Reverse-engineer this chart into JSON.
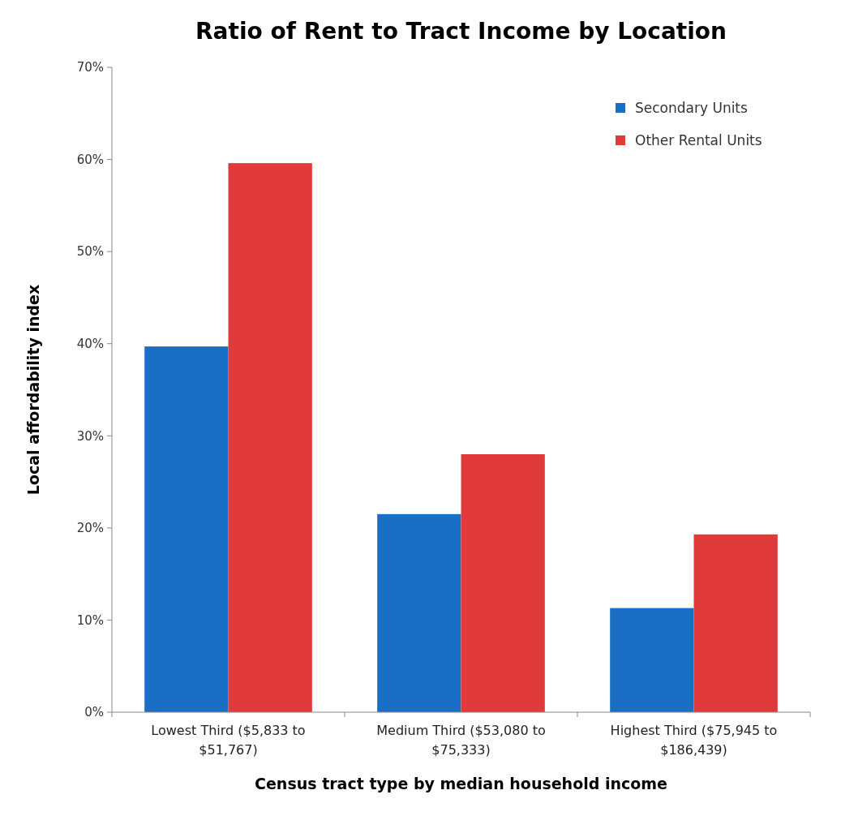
{
  "chart_data": {
    "type": "bar",
    "title": "Ratio of Rent to Tract Income by Location",
    "xlabel": "Census tract type by median household income",
    "ylabel": "Local affordability index",
    "categories": [
      "Lowest Third ($5,833 to $51,767)",
      "Medium Third ($53,080 to $75,333)",
      "Highest Third ($75,945 to $186,439)"
    ],
    "series": [
      {
        "name": "Secondary Units",
        "color": "#1a6fc4",
        "values": [
          39.7,
          21.5,
          11.3
        ]
      },
      {
        "name": "Other Rental Units",
        "color": "#e03a3a",
        "values": [
          59.6,
          28,
          19.3
        ]
      }
    ],
    "ylim": [
      0,
      70
    ],
    "yticks": [
      {
        "value": 0,
        "label": "0%"
      },
      {
        "value": 10,
        "label": "10%"
      },
      {
        "value": 20,
        "label": "20%"
      },
      {
        "value": 30,
        "label": "30%"
      },
      {
        "value": 40,
        "label": "40%"
      },
      {
        "value": 50,
        "label": "50%"
      },
      {
        "value": 60,
        "label": "60%"
      },
      {
        "value": 70,
        "label": "70%"
      }
    ],
    "legend": "top right",
    "grid": false
  }
}
